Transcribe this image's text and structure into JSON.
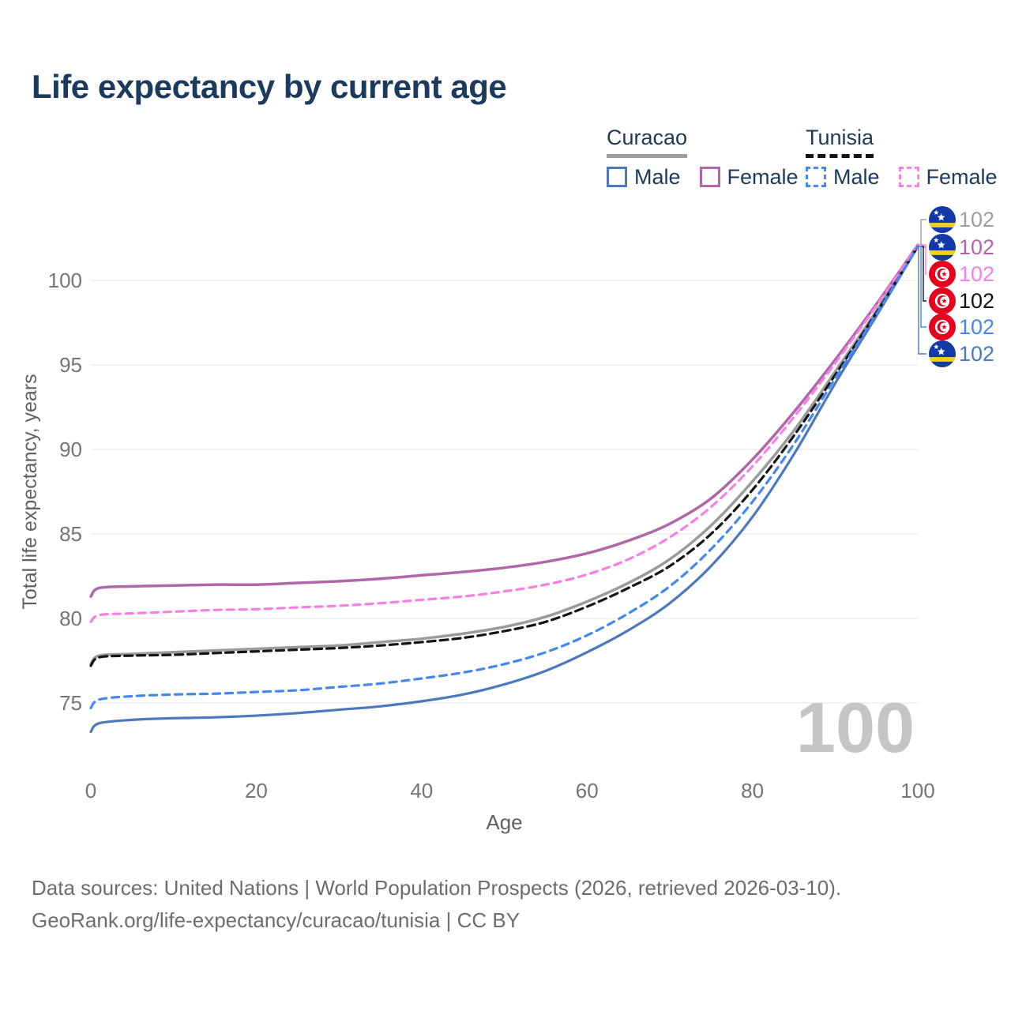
{
  "header": {
    "title": "Life expectancy by current age"
  },
  "legend": {
    "groups": [
      {
        "label": "Curacao",
        "line_style": "solid",
        "underline_color": "#9e9e9e",
        "items": [
          {
            "label": "Male",
            "color": "#4c78bc",
            "style": "solid"
          },
          {
            "label": "Female",
            "color": "#b066a9",
            "style": "solid"
          }
        ]
      },
      {
        "label": "Tunisia",
        "line_style": "dashed",
        "underline_color": "#141414",
        "items": [
          {
            "label": "Male",
            "color": "#4387f2",
            "style": "dashed"
          },
          {
            "label": "Female",
            "color": "#fb7ee3",
            "style": "dashed"
          }
        ]
      }
    ]
  },
  "chart_data": {
    "type": "line",
    "title": "Life expectancy by current age",
    "xlabel": "Age",
    "ylabel": "Total life expectancy, years",
    "xlim": [
      0,
      100
    ],
    "ylim": [
      73,
      103
    ],
    "xticks": [
      0,
      20,
      40,
      60,
      80,
      100
    ],
    "yticks": [
      75,
      80,
      85,
      90,
      95,
      100
    ],
    "grid": "horizontal",
    "watermark": "100",
    "x": [
      0,
      1,
      5,
      10,
      15,
      20,
      25,
      30,
      35,
      40,
      45,
      50,
      55,
      60,
      65,
      70,
      75,
      80,
      85,
      90,
      95,
      100
    ],
    "series": [
      {
        "name": "Curacao",
        "sex": "total",
        "color": "#9b9b9b",
        "dash": "solid",
        "width": 3.5,
        "values": [
          77.3,
          77.8,
          77.9,
          78.0,
          78.1,
          78.2,
          78.3,
          78.4,
          78.6,
          78.8,
          79.1,
          79.5,
          80.1,
          81.0,
          82.1,
          83.5,
          85.5,
          88.1,
          91.1,
          94.6,
          98.2,
          102.1
        ]
      },
      {
        "name": "Curacao",
        "sex": "female",
        "color": "#b066a9",
        "dash": "solid",
        "width": 3.5,
        "values": [
          81.3,
          81.8,
          81.9,
          81.95,
          82.0,
          82.0,
          82.1,
          82.2,
          82.35,
          82.55,
          82.75,
          83.0,
          83.35,
          83.85,
          84.6,
          85.6,
          87.1,
          89.4,
          92.2,
          95.3,
          98.6,
          102.1
        ]
      },
      {
        "name": "Curacao",
        "sex": "male",
        "color": "#4c78bc",
        "dash": "solid",
        "width": 3.2,
        "values": [
          73.3,
          73.8,
          74.0,
          74.1,
          74.15,
          74.25,
          74.4,
          74.6,
          74.8,
          75.1,
          75.5,
          76.1,
          76.9,
          78.0,
          79.3,
          80.9,
          83.1,
          86.0,
          89.7,
          93.9,
          97.9,
          102.0
        ]
      },
      {
        "name": "Tunisia",
        "sex": "total",
        "color": "#141414",
        "dash": "10 6",
        "width": 3.2,
        "values": [
          77.2,
          77.7,
          77.8,
          77.85,
          77.95,
          78.05,
          78.15,
          78.25,
          78.4,
          78.6,
          78.85,
          79.25,
          79.8,
          80.7,
          81.8,
          83.1,
          85.0,
          87.6,
          90.8,
          94.4,
          98.1,
          102.0
        ]
      },
      {
        "name": "Tunisia",
        "sex": "female",
        "color": "#fb7ee3",
        "dash": "9 7",
        "width": 3.2,
        "values": [
          79.8,
          80.2,
          80.3,
          80.4,
          80.5,
          80.55,
          80.65,
          80.75,
          80.9,
          81.1,
          81.3,
          81.6,
          82.0,
          82.6,
          83.5,
          84.8,
          86.6,
          89.0,
          91.9,
          95.1,
          98.5,
          102.1
        ]
      },
      {
        "name": "Tunisia",
        "sex": "male",
        "color": "#4387f2",
        "dash": "9 7",
        "width": 3.2,
        "values": [
          74.7,
          75.2,
          75.4,
          75.5,
          75.55,
          75.65,
          75.75,
          75.95,
          76.15,
          76.45,
          76.8,
          77.3,
          78.0,
          79.0,
          80.3,
          81.9,
          84.1,
          86.9,
          90.3,
          94.2,
          98.0,
          102.0
        ]
      }
    ]
  },
  "value_labels": [
    {
      "flag": "curacao-flag",
      "value": "102",
      "color": "#9e9e9e",
      "series": "curacao-total"
    },
    {
      "flag": "curacao-flag",
      "value": "102",
      "color": "#b066a9",
      "series": "curacao-female"
    },
    {
      "flag": "tunisia-flag",
      "value": "102",
      "color": "#fb7ee3",
      "series": "tunisia-female"
    },
    {
      "flag": "tunisia-flag",
      "value": "102",
      "color": "#141414",
      "series": "tunisia-total"
    },
    {
      "flag": "tunisia-flag",
      "value": "102",
      "color": "#4387f2",
      "series": "tunisia-male"
    },
    {
      "flag": "curacao-flag",
      "value": "102",
      "color": "#4c78bc",
      "series": "curacao-male"
    }
  ],
  "flag_colors": {
    "curacao_blue": "#1239a5",
    "curacao_yellow": "#f5d018",
    "tunisia_red": "#e6001e"
  },
  "footer": {
    "line1": "Data sources: United Nations | World Population Prospects (2026, retrieved 2026-03-10).",
    "line2": "GeoRank.org/life-expectancy/curacao/tunisia | CC BY"
  }
}
